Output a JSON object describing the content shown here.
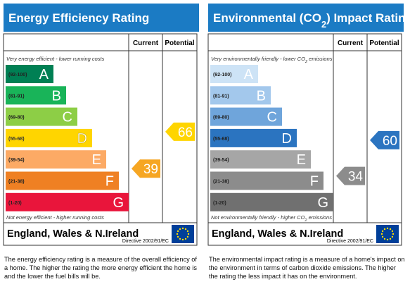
{
  "panels": [
    {
      "title_parts": [
        "Energy Efficiency Rating"
      ],
      "headers": [
        "Current",
        "Potential"
      ],
      "top_note_parts": [
        "Very energy efficient - lower running costs"
      ],
      "bottom_note_parts": [
        "Not energy efficient - higher running costs"
      ],
      "bands": [
        {
          "range": "(92-100)",
          "letter": "A",
          "color": "#008054"
        },
        {
          "range": "(81-91)",
          "letter": "B",
          "color": "#19b459"
        },
        {
          "range": "(69-80)",
          "letter": "C",
          "color": "#8dce46"
        },
        {
          "range": "(55-68)",
          "letter": "D",
          "color": "#ffd500"
        },
        {
          "range": "(39-54)",
          "letter": "E",
          "color": "#fcaa65"
        },
        {
          "range": "(21-38)",
          "letter": "F",
          "color": "#ef8023"
        },
        {
          "range": "(1-20)",
          "letter": "G",
          "color": "#e9153b"
        }
      ],
      "current": 39,
      "current_color": "#f6a623",
      "potential": 66,
      "potential_color": "#ffd500",
      "region": "England, Wales & N.Ireland",
      "directive": "Directive 2002/91/EC",
      "description": "The energy efficiency rating is a measure of the overall efficiency of a home. The higher the rating the more energy efficient the home is and the lower the fuel bills will be."
    },
    {
      "title_parts": [
        "Environmental (CO",
        "2",
        ") Impact Rating"
      ],
      "headers": [
        "Current",
        "Potential"
      ],
      "top_note_parts": [
        "Very environmentally friendly - lower CO",
        "2",
        " emissions"
      ],
      "bottom_note_parts": [
        "Not environmentally friendly - higher CO",
        "2",
        " emissions"
      ],
      "bands": [
        {
          "range": "(92-100)",
          "letter": "A",
          "color": "#cde3f6"
        },
        {
          "range": "(81-91)",
          "letter": "B",
          "color": "#a3c8ec"
        },
        {
          "range": "(69-80)",
          "letter": "C",
          "color": "#6fa5db"
        },
        {
          "range": "(55-68)",
          "letter": "D",
          "color": "#2b74c0"
        },
        {
          "range": "(39-54)",
          "letter": "E",
          "color": "#a6a6a6"
        },
        {
          "range": "(21-38)",
          "letter": "F",
          "color": "#8c8c8c"
        },
        {
          "range": "(1-20)",
          "letter": "G",
          "color": "#707070"
        }
      ],
      "current": 34,
      "current_color": "#8c8c8c",
      "potential": 60,
      "potential_color": "#2b74c0",
      "region": "England, Wales & N.Ireland",
      "directive": "Directive 2002/91/EC",
      "description": "The environmental impact rating is a measure of a home's impact on the environment in terms of carbon dioxide emissions. The higher the rating the less impact it has on the environment."
    }
  ]
}
